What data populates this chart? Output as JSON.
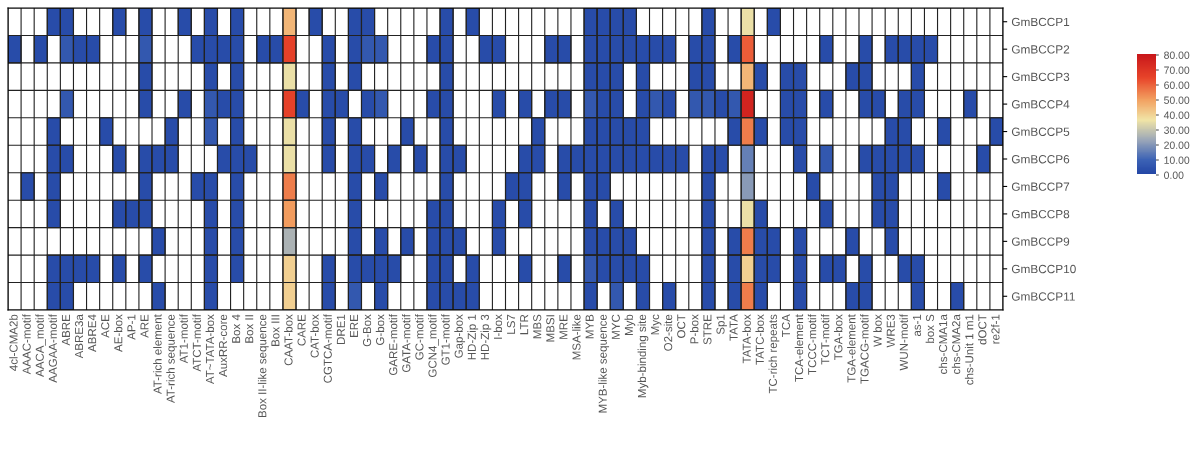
{
  "chart_data": {
    "type": "heatmap",
    "categories": [
      "4cl-CMA2b",
      "AAAC-motif",
      "AACA_motif",
      "AAGAA-motif",
      "ABRE",
      "ABRE3a",
      "ABRE4",
      "ACE",
      "AE-box",
      "AP-1",
      "ARE",
      "AT-rich element",
      "AT-rich sequence",
      "AT1-motif",
      "ATCT-motif",
      "AT~TATA-box",
      "AuxRR-core",
      "Box 4",
      "Box II",
      "Box II-like sequence",
      "Box III",
      "CAAT-box",
      "CARE",
      "CAT-box",
      "CGTCA-motif",
      "DRE1",
      "ERE",
      "G-Box",
      "G-box",
      "GARE-motif",
      "GATA-motif",
      "GC-motif",
      "GCN4_motif",
      "GT1-motif",
      "Gap-box",
      "HD-Zip 1",
      "HD-Zip 3",
      "I-box",
      "LS7",
      "LTR",
      "MBS",
      "MBSI",
      "MRE",
      "MSA-like",
      "MYB",
      "MYB-like sequence",
      "MYC",
      "Myb",
      "Myb-binding site",
      "Myc",
      "O2-site",
      "OCT",
      "P-box",
      "STRE",
      "Sp1",
      "TATA",
      "TATA-box",
      "TATC-box",
      "TC-rich repeats",
      "TCA",
      "TCA-element",
      "TCCC-motif",
      "TCT-motif",
      "TGA-box",
      "TGA-element",
      "TGACG-motif",
      "W box",
      "WRE3",
      "WUN-motif",
      "as-1",
      "box S",
      "chs-CMA1a",
      "chs-CMA2a",
      "chs-Unit 1 m1",
      "dOCT",
      "re2f-1"
    ],
    "y_categories": [
      "GmBCCP1",
      "GmBCCP2",
      "GmBCCP3",
      "GmBCCP4",
      "GmBCCP5",
      "GmBCCP6",
      "GmBCCP7",
      "GmBCCP8",
      "GmBCCP9",
      "GmBCCP10",
      "GmBCCP11"
    ],
    "cells": [
      [
        null,
        null,
        null,
        2,
        2,
        null,
        null,
        null,
        2,
        null,
        2,
        null,
        null,
        2,
        null,
        2,
        null,
        2,
        null,
        null,
        null,
        45,
        null,
        2,
        null,
        null,
        2,
        2,
        null,
        null,
        null,
        null,
        null,
        2,
        null,
        2,
        null,
        null,
        null,
        null,
        null,
        null,
        null,
        null,
        2,
        2,
        2,
        2,
        null,
        null,
        null,
        null,
        null,
        2,
        null,
        null,
        35,
        null,
        2,
        null,
        null,
        null,
        null,
        null,
        null,
        null,
        null,
        null,
        null,
        null,
        null,
        null,
        null,
        null,
        null,
        null
      ],
      [
        2,
        null,
        2,
        null,
        6,
        2,
        2,
        null,
        null,
        null,
        6,
        null,
        null,
        null,
        2,
        2,
        2,
        2,
        null,
        2,
        2,
        65,
        null,
        null,
        2,
        null,
        2,
        6,
        6,
        null,
        null,
        null,
        2,
        2,
        null,
        null,
        2,
        2,
        null,
        null,
        null,
        2,
        2,
        null,
        2,
        2,
        2,
        2,
        2,
        2,
        2,
        null,
        2,
        2,
        null,
        2,
        60,
        null,
        null,
        null,
        null,
        null,
        2,
        null,
        null,
        2,
        null,
        2,
        2,
        2,
        2,
        null,
        null,
        null,
        null,
        null
      ],
      [
        null,
        null,
        null,
        null,
        null,
        null,
        null,
        null,
        null,
        null,
        2,
        null,
        null,
        null,
        null,
        2,
        null,
        2,
        null,
        null,
        null,
        35,
        null,
        null,
        2,
        null,
        2,
        null,
        null,
        null,
        null,
        null,
        null,
        2,
        null,
        null,
        null,
        null,
        null,
        null,
        null,
        null,
        null,
        null,
        2,
        2,
        2,
        null,
        2,
        null,
        null,
        null,
        2,
        2,
        null,
        null,
        45,
        2,
        null,
        2,
        2,
        null,
        null,
        null,
        2,
        2,
        null,
        null,
        null,
        2,
        null,
        null,
        null,
        null,
        null,
        null
      ],
      [
        null,
        null,
        null,
        null,
        6,
        null,
        null,
        null,
        null,
        null,
        2,
        null,
        null,
        2,
        null,
        6,
        2,
        2,
        null,
        null,
        null,
        65,
        2,
        null,
        2,
        2,
        null,
        2,
        6,
        null,
        null,
        null,
        2,
        2,
        null,
        null,
        null,
        2,
        null,
        2,
        null,
        2,
        2,
        null,
        6,
        2,
        2,
        null,
        2,
        6,
        2,
        null,
        6,
        6,
        2,
        6,
        75,
        null,
        null,
        2,
        2,
        null,
        2,
        null,
        null,
        2,
        2,
        null,
        2,
        2,
        null,
        null,
        null,
        2,
        null,
        null
      ],
      [
        null,
        null,
        null,
        2,
        null,
        null,
        null,
        2,
        null,
        null,
        null,
        null,
        2,
        null,
        null,
        6,
        null,
        2,
        null,
        null,
        null,
        35,
        null,
        null,
        2,
        null,
        2,
        null,
        null,
        null,
        2,
        null,
        null,
        2,
        null,
        null,
        null,
        null,
        null,
        null,
        2,
        null,
        null,
        null,
        2,
        2,
        2,
        2,
        2,
        null,
        null,
        null,
        null,
        null,
        null,
        2,
        55,
        2,
        null,
        2,
        2,
        null,
        null,
        null,
        null,
        null,
        null,
        2,
        2,
        null,
        null,
        2,
        null,
        null,
        null,
        2
      ],
      [
        null,
        null,
        null,
        2,
        2,
        null,
        null,
        null,
        2,
        null,
        2,
        2,
        2,
        null,
        null,
        null,
        2,
        2,
        2,
        null,
        null,
        35,
        null,
        null,
        2,
        null,
        2,
        2,
        null,
        2,
        null,
        2,
        null,
        2,
        2,
        null,
        null,
        null,
        null,
        2,
        2,
        null,
        2,
        2,
        2,
        2,
        2,
        2,
        2,
        2,
        2,
        2,
        null,
        2,
        2,
        null,
        15,
        null,
        null,
        null,
        2,
        null,
        6,
        null,
        null,
        2,
        2,
        2,
        2,
        2,
        null,
        null,
        null,
        null,
        2,
        null
      ],
      [
        null,
        2,
        null,
        2,
        null,
        null,
        null,
        null,
        null,
        null,
        2,
        null,
        null,
        null,
        2,
        2,
        null,
        2,
        null,
        null,
        null,
        55,
        null,
        null,
        null,
        null,
        2,
        null,
        2,
        null,
        null,
        null,
        null,
        2,
        null,
        null,
        null,
        null,
        2,
        2,
        null,
        null,
        2,
        null,
        2,
        2,
        null,
        null,
        null,
        null,
        null,
        null,
        null,
        2,
        null,
        null,
        20,
        null,
        null,
        null,
        null,
        2,
        null,
        null,
        null,
        null,
        2,
        2,
        null,
        null,
        null,
        2,
        null,
        null,
        null,
        null
      ],
      [
        null,
        null,
        null,
        2,
        null,
        null,
        null,
        null,
        2,
        2,
        2,
        null,
        null,
        null,
        null,
        2,
        null,
        2,
        null,
        null,
        null,
        50,
        null,
        null,
        null,
        null,
        2,
        null,
        null,
        null,
        null,
        null,
        2,
        2,
        null,
        null,
        null,
        2,
        null,
        2,
        null,
        null,
        null,
        null,
        2,
        null,
        2,
        null,
        null,
        null,
        null,
        null,
        null,
        2,
        null,
        null,
        35,
        2,
        null,
        null,
        null,
        null,
        2,
        null,
        null,
        null,
        2,
        2,
        null,
        null,
        null,
        null,
        null,
        null,
        null,
        null
      ],
      [
        null,
        null,
        null,
        null,
        null,
        null,
        null,
        null,
        null,
        null,
        null,
        2,
        null,
        null,
        null,
        2,
        null,
        2,
        null,
        null,
        null,
        25,
        null,
        null,
        null,
        null,
        2,
        null,
        2,
        null,
        2,
        null,
        2,
        2,
        2,
        null,
        null,
        2,
        null,
        null,
        null,
        null,
        null,
        null,
        2,
        2,
        2,
        2,
        null,
        null,
        null,
        null,
        null,
        2,
        null,
        2,
        55,
        2,
        2,
        null,
        2,
        null,
        null,
        null,
        2,
        null,
        null,
        2,
        null,
        null,
        null,
        null,
        null,
        null,
        null,
        null
      ],
      [
        null,
        null,
        null,
        2,
        2,
        2,
        2,
        null,
        2,
        null,
        2,
        null,
        null,
        null,
        null,
        2,
        null,
        2,
        null,
        null,
        null,
        40,
        null,
        null,
        2,
        null,
        2,
        2,
        2,
        2,
        null,
        null,
        2,
        2,
        null,
        2,
        null,
        null,
        null,
        2,
        null,
        null,
        2,
        null,
        6,
        2,
        2,
        2,
        2,
        null,
        null,
        null,
        null,
        2,
        null,
        2,
        40,
        2,
        2,
        null,
        2,
        null,
        2,
        2,
        null,
        2,
        null,
        null,
        2,
        2,
        null,
        null,
        null,
        null,
        null,
        null
      ],
      [
        null,
        null,
        null,
        2,
        2,
        null,
        null,
        null,
        null,
        null,
        null,
        2,
        null,
        null,
        null,
        2,
        null,
        null,
        null,
        null,
        null,
        40,
        null,
        null,
        2,
        null,
        6,
        null,
        2,
        null,
        null,
        null,
        2,
        2,
        2,
        2,
        null,
        null,
        null,
        null,
        null,
        null,
        null,
        null,
        2,
        null,
        6,
        null,
        2,
        null,
        2,
        null,
        null,
        2,
        null,
        2,
        55,
        2,
        null,
        null,
        2,
        null,
        null,
        null,
        2,
        2,
        null,
        null,
        null,
        2,
        null,
        null,
        2,
        null,
        null,
        null
      ]
    ],
    "clim": [
      0,
      80
    ],
    "cticks": [
      {
        "value": 0,
        "label": "0.00"
      },
      {
        "value": 10,
        "label": "10.00"
      },
      {
        "value": 20,
        "label": "20.00"
      },
      {
        "value": 30,
        "label": "30.00"
      },
      {
        "value": 40,
        "label": "40.00"
      },
      {
        "value": 50,
        "label": "50.00"
      },
      {
        "value": 60,
        "label": "60.00"
      },
      {
        "value": 70,
        "label": "70.00"
      },
      {
        "value": 80,
        "label": "80.00"
      }
    ]
  }
}
